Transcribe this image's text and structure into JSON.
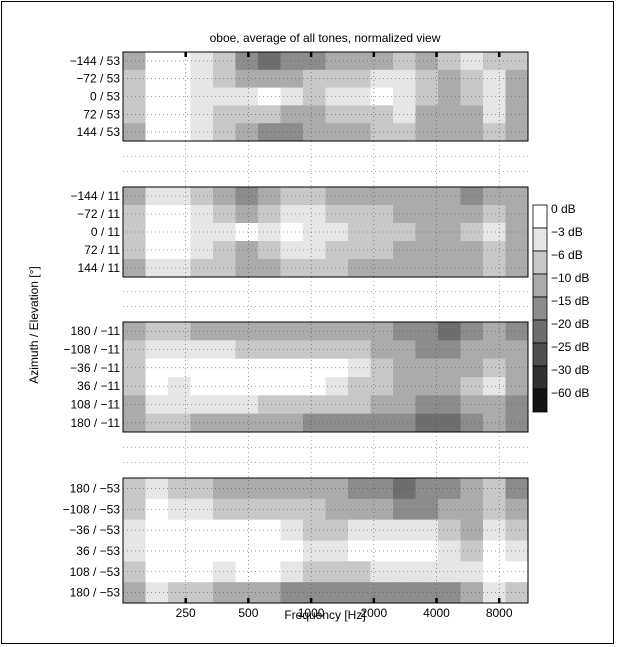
{
  "chart_data": {
    "type": "heatmap",
    "title": "oboe, average of all tones, normalized view",
    "xlabel": "Frequency [Hz]",
    "ylabel": "Azimuth / Elevation [°]",
    "x_scale": "log",
    "x_range_hz": [
      125,
      11000
    ],
    "x_ticks": [
      {
        "value": 250,
        "label": "250"
      },
      {
        "value": 500,
        "label": "500"
      },
      {
        "value": 1000,
        "label": "1000"
      },
      {
        "value": 2000,
        "label": "2000"
      },
      {
        "value": 4000,
        "label": "4000"
      },
      {
        "value": 8000,
        "label": "8000"
      }
    ],
    "grid": "dotted",
    "colorbar": {
      "placement": "right",
      "levels_db": [
        0,
        -3,
        -6,
        -10,
        -15,
        -20,
        -25,
        -30,
        -60
      ],
      "labels": [
        "0 dB",
        "−3 dB",
        "−6 dB",
        "−10 dB",
        "−15 dB",
        "−20 dB",
        "−25 dB",
        "−30 dB",
        "−60 dB"
      ],
      "colors": [
        "#ffffff",
        "#e6e6e6",
        "#c8c8c8",
        "#ababab",
        "#8c8c8c",
        "#6e6e6e",
        "#4f4f4f",
        "#313131",
        "#141414"
      ]
    },
    "panels": [
      {
        "elevation": 53,
        "rows": [
          "−144 / 53",
          "−72 / 53",
          "0 / 53",
          "72 / 53",
          "144 / 53"
        ],
        "levels": [
          [
            3,
            0,
            0,
            1,
            2,
            4,
            5,
            4,
            4,
            3,
            3,
            3,
            2,
            3,
            2,
            1,
            2,
            2
          ],
          [
            2,
            0,
            0,
            1,
            2,
            3,
            3,
            3,
            2,
            2,
            2,
            1,
            1,
            2,
            3,
            2,
            1,
            3
          ],
          [
            2,
            0,
            0,
            1,
            1,
            1,
            0,
            1,
            2,
            1,
            1,
            0,
            1,
            2,
            3,
            2,
            1,
            3
          ],
          [
            2,
            0,
            0,
            1,
            2,
            2,
            2,
            3,
            3,
            2,
            2,
            2,
            1,
            3,
            3,
            3,
            1,
            3
          ],
          [
            3,
            0,
            0,
            1,
            2,
            3,
            4,
            4,
            3,
            3,
            3,
            2,
            2,
            3,
            3,
            3,
            2,
            3
          ]
        ]
      },
      {
        "elevation": 11,
        "rows": [
          "−144 / 11",
          "−72 / 11",
          "0 / 11",
          "72 / 11",
          "144 / 11"
        ],
        "levels": [
          [
            3,
            1,
            1,
            2,
            3,
            4,
            3,
            2,
            2,
            3,
            3,
            3,
            3,
            3,
            3,
            4,
            3,
            3
          ],
          [
            2,
            0,
            0,
            1,
            2,
            3,
            2,
            1,
            1,
            2,
            2,
            2,
            3,
            3,
            3,
            3,
            2,
            3
          ],
          [
            2,
            0,
            0,
            1,
            1,
            0,
            1,
            0,
            1,
            1,
            2,
            2,
            2,
            3,
            3,
            2,
            1,
            3
          ],
          [
            2,
            0,
            0,
            1,
            2,
            3,
            2,
            1,
            1,
            2,
            2,
            2,
            3,
            3,
            3,
            3,
            2,
            3
          ],
          [
            3,
            1,
            1,
            2,
            2,
            3,
            3,
            2,
            2,
            2,
            3,
            3,
            3,
            3,
            3,
            3,
            2,
            3
          ]
        ]
      },
      {
        "elevation": -11,
        "rows": [
          "180 / −11",
          "−108 / −11",
          "−36 / −11",
          "36 / −11",
          "108 / −11",
          "180 / −11"
        ],
        "levels": [
          [
            3,
            2,
            2,
            3,
            3,
            3,
            3,
            3,
            3,
            3,
            3,
            3,
            4,
            4,
            5,
            4,
            3,
            4
          ],
          [
            2,
            1,
            1,
            1,
            1,
            2,
            2,
            2,
            2,
            2,
            2,
            3,
            3,
            4,
            4,
            3,
            3,
            3
          ],
          [
            2,
            0,
            0,
            0,
            0,
            0,
            0,
            0,
            0,
            0,
            1,
            2,
            3,
            3,
            3,
            3,
            2,
            3
          ],
          [
            2,
            0,
            1,
            0,
            0,
            0,
            0,
            0,
            0,
            1,
            2,
            2,
            3,
            3,
            3,
            2,
            1,
            3
          ],
          [
            3,
            1,
            1,
            1,
            1,
            1,
            2,
            2,
            2,
            2,
            2,
            3,
            3,
            4,
            4,
            3,
            3,
            4
          ],
          [
            3,
            2,
            2,
            3,
            3,
            3,
            3,
            3,
            4,
            4,
            4,
            4,
            4,
            5,
            5,
            4,
            3,
            4
          ]
        ]
      },
      {
        "elevation": -53,
        "rows": [
          "180 / −53",
          "−108 / −53",
          "−36 / −53",
          "36 / −53",
          "108 / −53",
          "180 / −53"
        ],
        "levels": [
          [
            2,
            1,
            2,
            2,
            3,
            3,
            3,
            3,
            3,
            3,
            4,
            4,
            5,
            4,
            4,
            3,
            2,
            4
          ],
          [
            2,
            0,
            1,
            1,
            2,
            2,
            2,
            2,
            2,
            3,
            3,
            3,
            4,
            4,
            3,
            3,
            2,
            3
          ],
          [
            1,
            0,
            0,
            0,
            0,
            0,
            0,
            1,
            2,
            2,
            1,
            1,
            1,
            1,
            2,
            3,
            1,
            2
          ],
          [
            1,
            0,
            0,
            0,
            0,
            0,
            0,
            0,
            1,
            1,
            0,
            0,
            0,
            0,
            1,
            2,
            0,
            1
          ],
          [
            2,
            0,
            0,
            0,
            1,
            0,
            0,
            1,
            2,
            2,
            2,
            1,
            1,
            1,
            1,
            1,
            0,
            0
          ],
          [
            3,
            1,
            2,
            2,
            3,
            3,
            3,
            4,
            4,
            4,
            4,
            4,
            4,
            4,
            4,
            3,
            1,
            2
          ]
        ]
      }
    ]
  }
}
